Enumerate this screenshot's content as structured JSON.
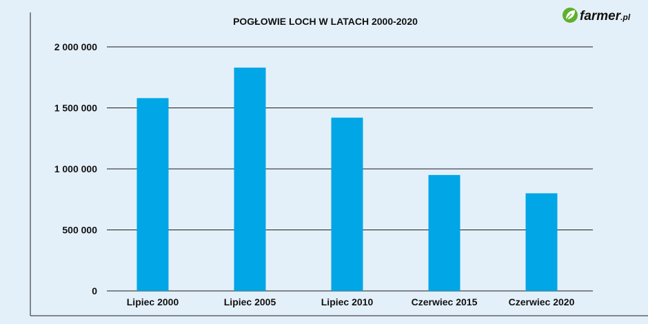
{
  "brand": {
    "name": "farmer",
    "suffix": ".pl",
    "icon": "leaf-icon",
    "icon_color": "#5fb02b"
  },
  "colors": {
    "background": "#e4f0f9",
    "bar": "#00a6e6",
    "grid": "#1a1a1a",
    "frame": "#1a1a1a"
  },
  "chart_data": {
    "type": "bar",
    "title": "POGŁOWIE LOCH W LATACH 2000-2020",
    "xlabel": "",
    "ylabel": "",
    "categories": [
      "Lipiec 2000",
      "Lipiec 2005",
      "Lipiec 2010",
      "Czerwiec 2015",
      "Czerwiec 2020"
    ],
    "values": [
      1580000,
      1830000,
      1420000,
      950000,
      800000
    ],
    "ylim": [
      0,
      2000000
    ],
    "yticks": [
      0,
      500000,
      1000000,
      1500000,
      2000000
    ],
    "ytick_labels": [
      "0",
      "500 000",
      "1 000 000",
      "1 500 000",
      "2 000 000"
    ],
    "grid": true,
    "legend": "none"
  }
}
